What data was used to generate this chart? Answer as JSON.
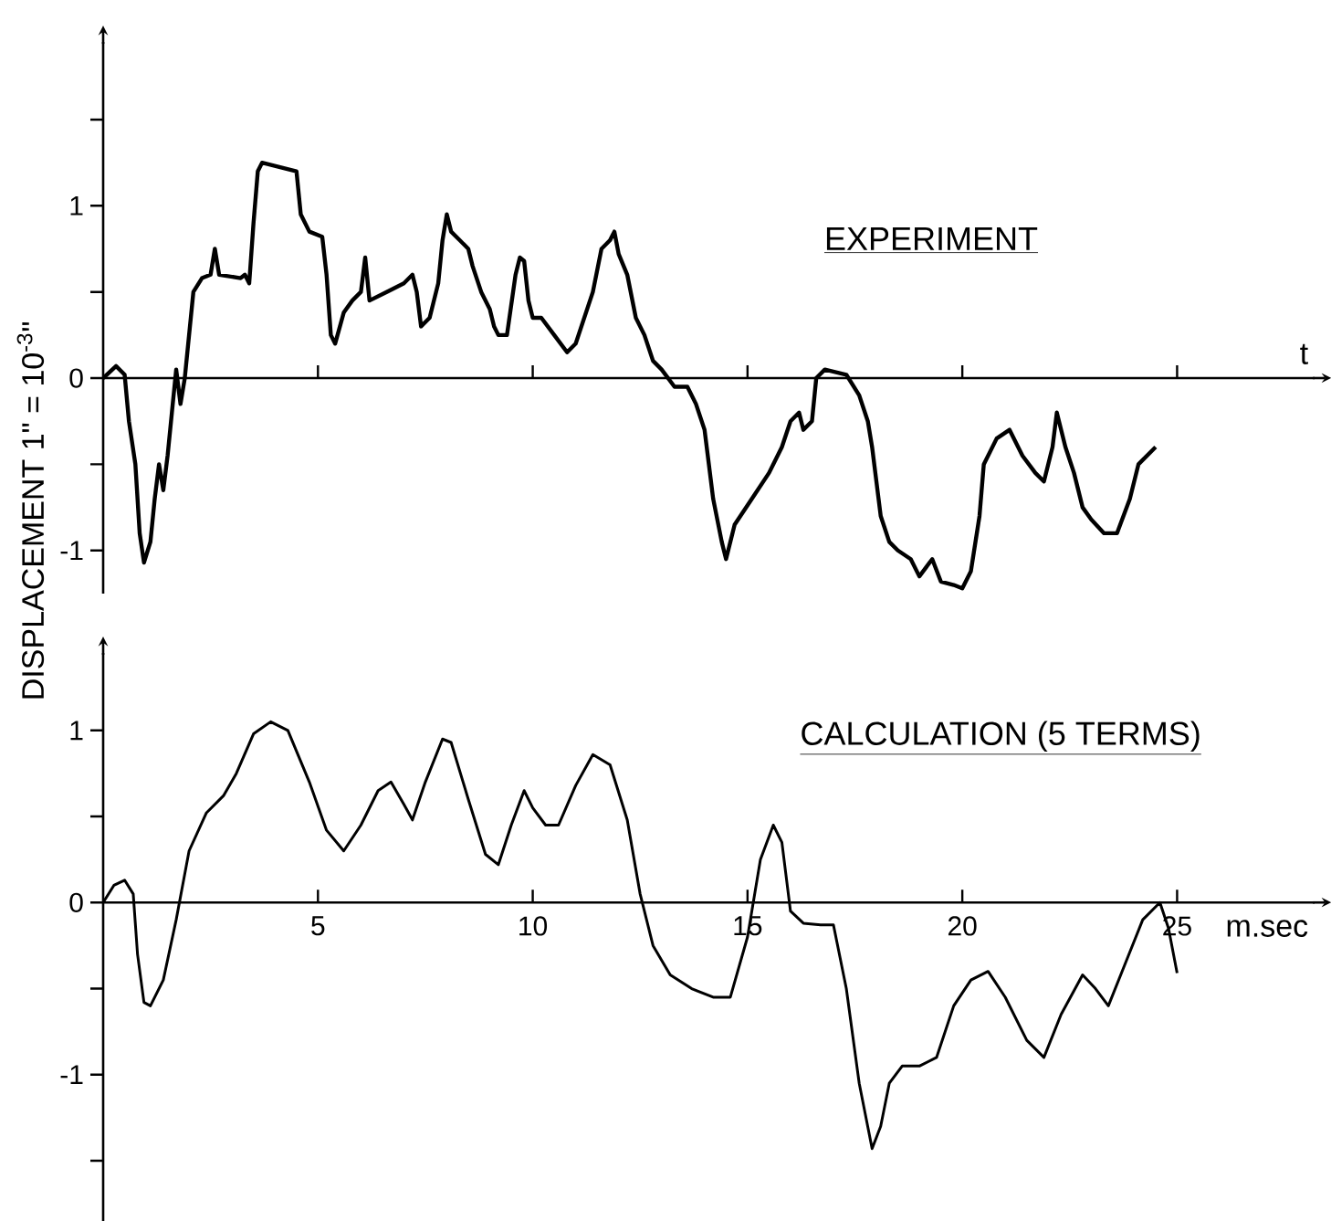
{
  "chart_data": [
    {
      "type": "line",
      "title": "EXPERIMENT",
      "xlabel": "t",
      "ylabel": "DISPLACEMENT    1\" = 10$^{-3}$\"",
      "color": "#000000",
      "x": [
        0,
        0.3,
        0.5,
        0.6,
        0.75,
        0.85,
        0.95,
        1.1,
        1.2,
        1.3,
        1.4,
        1.5,
        1.6,
        1.7,
        1.8,
        1.9,
        2.1,
        2.3,
        2.5,
        2.6,
        2.7,
        3.2,
        3.3,
        3.4,
        3.5,
        3.6,
        3.7,
        4.5,
        4.6,
        4.8,
        5.1,
        5.2,
        5.3,
        5.4,
        5.6,
        5.8,
        6.0,
        6.1,
        6.2,
        6.6,
        7.0,
        7.2,
        7.3,
        7.4,
        7.6,
        7.8,
        7.9,
        8.0,
        8.1,
        8.3,
        8.5,
        8.6,
        8.8,
        9.0,
        9.1,
        9.2,
        9.4,
        9.6,
        9.7,
        9.8,
        9.9,
        10.0,
        10.2,
        10.5,
        10.8,
        11.0,
        11.2,
        11.4,
        11.6,
        11.8,
        11.9,
        12.0,
        12.2,
        12.4,
        12.6,
        12.8,
        13.0,
        13.3,
        13.6,
        13.8,
        14.0,
        14.2,
        14.4,
        14.5,
        14.7,
        15.1,
        15.5,
        15.8,
        16.0,
        16.2,
        16.3,
        16.5,
        16.6,
        16.8,
        17.3,
        17.6,
        17.8,
        17.9,
        18.1,
        18.3,
        18.5,
        18.8,
        19.0,
        19.3,
        19.5,
        19.8,
        20.0,
        20.2,
        20.4,
        20.5,
        20.8,
        21.1,
        21.4,
        21.7,
        21.9,
        22.1,
        22.2,
        22.4,
        22.6,
        22.8,
        23.0,
        23.3,
        23.6,
        23.9,
        24.1,
        24.5
      ],
      "values": [
        0,
        0.07,
        0.02,
        -0.25,
        -0.5,
        -0.9,
        -1.07,
        -0.95,
        -0.7,
        -0.5,
        -0.65,
        -0.45,
        -0.2,
        0.05,
        -0.15,
        0.0,
        0.5,
        0.58,
        0.6,
        0.75,
        0.6,
        0.58,
        0.6,
        0.55,
        0.9,
        1.2,
        1.25,
        1.2,
        0.95,
        0.85,
        0.82,
        0.6,
        0.25,
        0.2,
        0.38,
        0.45,
        0.5,
        0.7,
        0.45,
        0.5,
        0.55,
        0.6,
        0.5,
        0.3,
        0.35,
        0.55,
        0.8,
        0.95,
        0.85,
        0.8,
        0.75,
        0.65,
        0.5,
        0.4,
        0.3,
        0.25,
        0.25,
        0.6,
        0.7,
        0.68,
        0.45,
        0.35,
        0.35,
        0.25,
        0.15,
        0.2,
        0.35,
        0.5,
        0.75,
        0.8,
        0.85,
        0.72,
        0.6,
        0.35,
        0.25,
        0.1,
        0.05,
        -0.05,
        -0.05,
        -0.15,
        -0.3,
        -0.7,
        -0.95,
        -1.05,
        -0.85,
        -0.7,
        -0.55,
        -0.4,
        -0.25,
        -0.2,
        -0.3,
        -0.25,
        0.0,
        0.05,
        0.02,
        -0.1,
        -0.25,
        -0.4,
        -0.8,
        -0.95,
        -1.0,
        -1.05,
        -1.15,
        -1.05,
        -1.18,
        -1.2,
        -1.22,
        -1.12,
        -0.8,
        -0.5,
        -0.35,
        -0.3,
        -0.45,
        -0.55,
        -0.6,
        -0.4,
        -0.2,
        -0.4,
        -0.55,
        -0.75,
        -0.82,
        -0.9,
        -0.9,
        -0.7,
        -0.5,
        -0.4
      ],
      "xlim": [
        0,
        28.2
      ],
      "ylim": [
        -1.25,
        1.95
      ],
      "xticks": [
        5,
        10,
        15,
        20,
        25
      ],
      "yticks": [
        {
          "value": 1.5,
          "label": null
        },
        1,
        {
          "value": 0.5,
          "label": null
        },
        0,
        {
          "value": -0.5,
          "label": null
        },
        -1
      ],
      "tick_labels": "y"
    },
    {
      "type": "line",
      "title": "CALCULATION (5 TERMS)",
      "xlabel": "m.sec",
      "color": "#000000",
      "x": [
        0,
        0.25,
        0.5,
        0.7,
        0.8,
        0.95,
        1.1,
        1.4,
        1.7,
        2.0,
        2.4,
        2.8,
        3.1,
        3.5,
        3.9,
        4.3,
        4.8,
        5.2,
        5.6,
        6.0,
        6.4,
        6.7,
        7.0,
        7.2,
        7.5,
        7.9,
        8.1,
        8.5,
        8.9,
        9.2,
        9.5,
        9.8,
        10.0,
        10.3,
        10.6,
        11.0,
        11.4,
        11.8,
        12.2,
        12.5,
        12.8,
        13.2,
        13.7,
        14.2,
        14.6,
        15.0,
        15.3,
        15.6,
        15.8,
        16.0,
        16.3,
        16.7,
        17.0,
        17.3,
        17.6,
        17.9,
        18.1,
        18.3,
        18.6,
        19.0,
        19.4,
        19.8,
        20.2,
        20.6,
        21.0,
        21.5,
        21.9,
        22.3,
        22.8,
        23.1,
        23.4,
        23.8,
        24.2,
        24.6,
        24.8,
        25.0
      ],
      "values": [
        0,
        0.1,
        0.13,
        0.05,
        -0.3,
        -0.58,
        -0.6,
        -0.45,
        -0.1,
        0.3,
        0.52,
        0.62,
        0.75,
        0.98,
        1.05,
        1.0,
        0.7,
        0.42,
        0.3,
        0.45,
        0.65,
        0.7,
        0.57,
        0.48,
        0.7,
        0.95,
        0.93,
        0.6,
        0.28,
        0.22,
        0.45,
        0.65,
        0.55,
        0.45,
        0.45,
        0.68,
        0.86,
        0.8,
        0.48,
        0.05,
        -0.25,
        -0.42,
        -0.5,
        -0.55,
        -0.55,
        -0.2,
        0.25,
        0.45,
        0.35,
        -0.05,
        -0.12,
        -0.13,
        -0.13,
        -0.5,
        -1.05,
        -1.43,
        -1.3,
        -1.05,
        -0.95,
        -0.95,
        -0.9,
        -0.6,
        -0.45,
        -0.4,
        -0.55,
        -0.8,
        -0.9,
        -0.65,
        -0.42,
        -0.5,
        -0.6,
        -0.35,
        -0.1,
        0.0,
        -0.15,
        -0.41
      ],
      "xlim": [
        0,
        28.2
      ],
      "ylim": [
        -1.85,
        1.45
      ],
      "xticks": [
        5,
        10,
        15,
        20,
        25
      ],
      "yticks": [
        1,
        {
          "value": 0.5,
          "label": null
        },
        0,
        {
          "value": -0.5,
          "label": null
        },
        -1,
        {
          "value": -1.5,
          "label": null
        }
      ]
    }
  ]
}
